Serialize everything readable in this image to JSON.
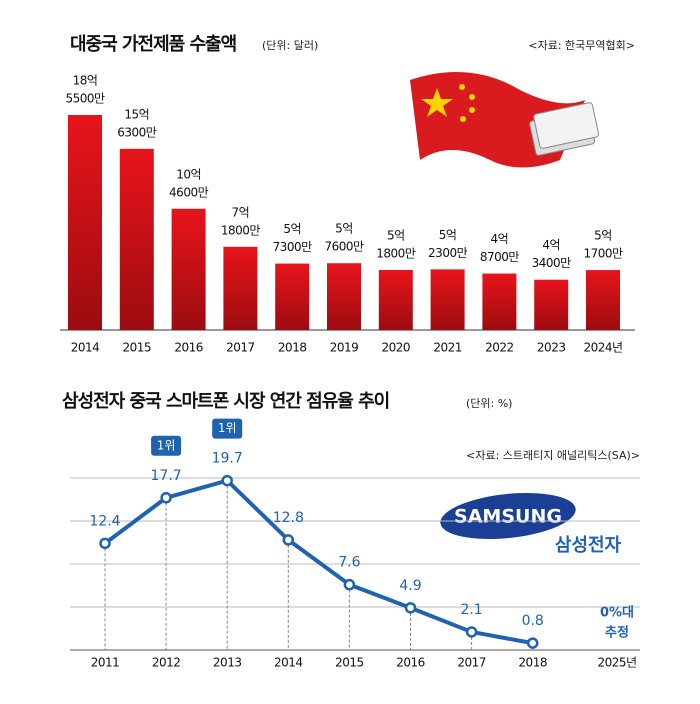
{
  "chart_data": [
    {
      "type": "bar",
      "title": "대중국 가전제품 수출액",
      "subtitle": "(단위: 달러)",
      "source": "<자료: 한국무역협회>",
      "categories": [
        "2014",
        "2015",
        "2016",
        "2017",
        "2018",
        "2019",
        "2020",
        "2021",
        "2022",
        "2023",
        "2024년"
      ],
      "values": [
        1855000000,
        1563000000,
        1046000000,
        718000000,
        573000000,
        576000000,
        518000000,
        523000000,
        487000000,
        434000000,
        517000000
      ],
      "value_labels": [
        [
          "18억",
          "5500만"
        ],
        [
          "15억",
          "6300만"
        ],
        [
          "10억",
          "4600만"
        ],
        [
          "7억",
          "1800만"
        ],
        [
          "5억",
          "7300만"
        ],
        [
          "5억",
          "7600만"
        ],
        [
          "5억",
          "1800만"
        ],
        [
          "5억",
          "2300만"
        ],
        [
          "4억",
          "8700만"
        ],
        [
          "4억",
          "3400만"
        ],
        [
          "5억",
          "1700만"
        ]
      ],
      "color": "#d7141b"
    },
    {
      "type": "line",
      "title": "삼성전자 중국 스마트폰 시장 연간 점유율 추이",
      "subtitle": "(단위: %)",
      "source": "<자료: 스트래티지 애널리틱스(SA)>",
      "categories": [
        "2011",
        "2012",
        "2013",
        "2014",
        "2015",
        "2016",
        "2017",
        "2018",
        "2025년"
      ],
      "values": [
        12.4,
        17.7,
        19.7,
        12.8,
        7.6,
        4.9,
        2.1,
        0.8,
        null
      ],
      "ranks": [
        null,
        "1위",
        "1위",
        null,
        null,
        null,
        null,
        null,
        null
      ],
      "annotation": [
        "0%대",
        "추정"
      ],
      "logo": "SAMSUNG",
      "logo_caption": "삼성전자",
      "color": "#1f62b0",
      "ylim": [
        0,
        20
      ],
      "yticks": [
        0,
        5,
        10,
        15,
        20
      ],
      "grid": true
    }
  ]
}
